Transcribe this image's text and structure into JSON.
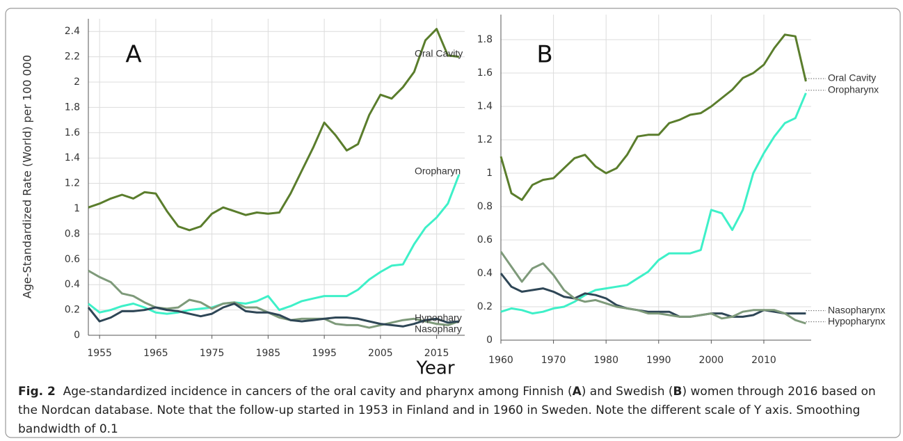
{
  "xlabel": "Year",
  "caption": {
    "label": "Fig. 2",
    "parts": [
      "Age-standardized incidence in cancers of the oral cavity and pharynx among Finnish (",
      "A",
      ") and Swedish (",
      "B",
      ") women through 2016 based on the Nordcan database. Note that the follow-up started in 1953 in Finland and in 1960 in Sweden. Note the different scale of Y axis. Smoothing bandwidth of 0.1"
    ]
  },
  "chart_data": [
    {
      "type": "line",
      "panel_label": "A",
      "ylabel": "Age-Standardized Rate (World) per 100 000",
      "x": [
        1953,
        1955,
        1957,
        1959,
        1961,
        1963,
        1965,
        1967,
        1969,
        1971,
        1973,
        1975,
        1977,
        1979,
        1981,
        1983,
        1985,
        1987,
        1989,
        1991,
        1993,
        1995,
        1997,
        1999,
        2001,
        2003,
        2005,
        2007,
        2009,
        2011,
        2013,
        2015,
        2017,
        2019
      ],
      "xlim": [
        1953,
        2020
      ],
      "xticks": [
        1955,
        1965,
        1975,
        1985,
        1995,
        2005,
        2015
      ],
      "ylim": [
        0,
        2.5
      ],
      "yticks": [
        0,
        0.2,
        0.4,
        0.6,
        0.8,
        1,
        1.2,
        1.4,
        1.6,
        1.8,
        2,
        2.2,
        2.4
      ],
      "grid": true,
      "series": [
        {
          "name": "Oral Cavity",
          "color": "#5a7d2c",
          "values": [
            1.01,
            1.04,
            1.08,
            1.11,
            1.08,
            1.13,
            1.12,
            0.98,
            0.86,
            0.83,
            0.86,
            0.96,
            1.01,
            0.98,
            0.95,
            0.97,
            0.96,
            0.97,
            1.12,
            1.3,
            1.48,
            1.68,
            1.58,
            1.46,
            1.51,
            1.74,
            1.9,
            1.87,
            1.96,
            2.08,
            2.33,
            2.42,
            2.21,
            2.2
          ]
        },
        {
          "name": "Oropharyn",
          "color": "#3ef0c8",
          "values": [
            0.25,
            0.18,
            0.2,
            0.23,
            0.25,
            0.22,
            0.18,
            0.17,
            0.18,
            0.2,
            0.21,
            0.22,
            0.25,
            0.26,
            0.25,
            0.27,
            0.31,
            0.2,
            0.23,
            0.27,
            0.29,
            0.31,
            0.31,
            0.31,
            0.36,
            0.44,
            0.5,
            0.55,
            0.56,
            0.72,
            0.85,
            0.93,
            1.04,
            1.27
          ]
        },
        {
          "name": "Hypophary",
          "color": "#7e9a7a",
          "values": [
            0.51,
            0.46,
            0.42,
            0.33,
            0.31,
            0.26,
            0.22,
            0.21,
            0.22,
            0.28,
            0.26,
            0.21,
            0.25,
            0.26,
            0.22,
            0.22,
            0.18,
            0.14,
            0.12,
            0.13,
            0.13,
            0.13,
            0.09,
            0.08,
            0.08,
            0.06,
            0.08,
            0.1,
            0.12,
            0.13,
            0.11,
            0.09,
            0.08,
            0.11
          ]
        },
        {
          "name": "Nasophary",
          "color": "#2e4656",
          "values": [
            0.22,
            0.11,
            0.14,
            0.19,
            0.19,
            0.2,
            0.22,
            0.2,
            0.19,
            0.17,
            0.15,
            0.17,
            0.22,
            0.25,
            0.19,
            0.18,
            0.18,
            0.16,
            0.12,
            0.11,
            0.12,
            0.13,
            0.14,
            0.14,
            0.13,
            0.11,
            0.09,
            0.08,
            0.07,
            0.09,
            0.12,
            0.13,
            0.1,
            0.11
          ]
        }
      ]
    },
    {
      "type": "line",
      "panel_label": "B",
      "x": [
        1960,
        1962,
        1964,
        1966,
        1968,
        1970,
        1972,
        1974,
        1976,
        1978,
        1980,
        1982,
        1984,
        1986,
        1988,
        1990,
        1992,
        1994,
        1996,
        1998,
        2000,
        2002,
        2004,
        2006,
        2008,
        2010,
        2012,
        2014,
        2016,
        2018
      ],
      "xlim": [
        1960,
        2019
      ],
      "xticks": [
        1960,
        1970,
        1980,
        1990,
        2000,
        2010
      ],
      "ylim": [
        0,
        1.95
      ],
      "yticks": [
        0,
        0.2,
        0.4,
        0.6,
        0.8,
        1,
        1.2,
        1.4,
        1.6,
        1.8
      ],
      "grid": true,
      "series": [
        {
          "name": "Oral Cavity",
          "color": "#5a7d2c",
          "values": [
            1.1,
            0.88,
            0.84,
            0.93,
            0.96,
            0.97,
            1.03,
            1.09,
            1.11,
            1.04,
            1.0,
            1.03,
            1.11,
            1.22,
            1.23,
            1.23,
            1.3,
            1.32,
            1.35,
            1.36,
            1.4,
            1.45,
            1.5,
            1.57,
            1.6,
            1.65,
            1.75,
            1.83,
            1.82,
            1.55
          ]
        },
        {
          "name": "Oropharynx",
          "color": "#3ef0c8",
          "values": [
            0.17,
            0.19,
            0.18,
            0.16,
            0.17,
            0.19,
            0.2,
            0.23,
            0.27,
            0.3,
            0.31,
            0.32,
            0.33,
            0.37,
            0.41,
            0.48,
            0.52,
            0.52,
            0.52,
            0.54,
            0.78,
            0.76,
            0.66,
            0.78,
            1.0,
            1.12,
            1.22,
            1.3,
            1.33,
            1.48
          ]
        },
        {
          "name": "Nasopharynx",
          "color": "#2e4656",
          "values": [
            0.4,
            0.32,
            0.29,
            0.3,
            0.31,
            0.29,
            0.26,
            0.25,
            0.28,
            0.27,
            0.25,
            0.21,
            0.19,
            0.18,
            0.17,
            0.17,
            0.17,
            0.14,
            0.14,
            0.15,
            0.16,
            0.16,
            0.14,
            0.14,
            0.15,
            0.18,
            0.17,
            0.16,
            0.16,
            0.16
          ]
        },
        {
          "name": "Hypopharynx",
          "color": "#7e9a7a",
          "values": [
            0.53,
            0.44,
            0.35,
            0.43,
            0.46,
            0.39,
            0.3,
            0.25,
            0.23,
            0.24,
            0.22,
            0.2,
            0.19,
            0.18,
            0.16,
            0.16,
            0.15,
            0.14,
            0.14,
            0.15,
            0.16,
            0.13,
            0.14,
            0.17,
            0.18,
            0.18,
            0.18,
            0.16,
            0.12,
            0.1
          ]
        }
      ]
    }
  ]
}
